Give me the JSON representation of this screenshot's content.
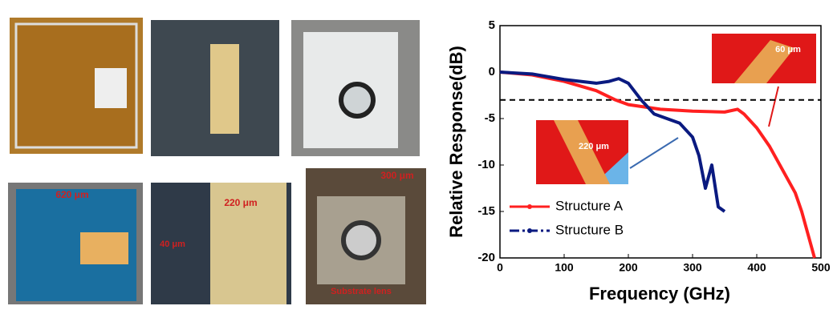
{
  "chart_data": {
    "type": "line",
    "xlabel": "Frequency (GHz)",
    "ylabel": "Relative Response(dB)",
    "xlim": [
      0,
      500
    ],
    "xticks": [
      0,
      100,
      200,
      300,
      400,
      500
    ],
    "ylim": [
      -20,
      5
    ],
    "yticks": [
      -20,
      -15,
      -10,
      -5,
      0,
      5
    ],
    "reference_line": -3,
    "annotations": [
      "60 μm",
      "220 μm"
    ],
    "series": [
      {
        "name": "Structure A",
        "color": "#ff2020",
        "x": [
          0,
          50,
          100,
          150,
          180,
          200,
          250,
          300,
          350,
          370,
          380,
          400,
          420,
          440,
          460,
          470,
          480,
          490
        ],
        "values": [
          0,
          -0.3,
          -1,
          -2,
          -3,
          -3.5,
          -4,
          -4.2,
          -4.3,
          -4,
          -4.5,
          -6,
          -8,
          -10.5,
          -13,
          -15,
          -17.5,
          -20
        ]
      },
      {
        "name": "Structure B",
        "color": "#0a1a80",
        "x": [
          0,
          50,
          100,
          150,
          170,
          185,
          200,
          220,
          240,
          260,
          280,
          300,
          310,
          320,
          330,
          340,
          350
        ],
        "values": [
          0,
          -0.2,
          -0.8,
          -1.2,
          -1,
          -0.7,
          -1.2,
          -3,
          -4.5,
          -5,
          -5.5,
          -7,
          -9,
          -12.5,
          -10,
          -14.5,
          -15
        ]
      }
    ]
  },
  "photos": {
    "labels": [
      "620 μm",
      "220 μm",
      "40 μm",
      "300 μm",
      "Substrate lens"
    ]
  }
}
